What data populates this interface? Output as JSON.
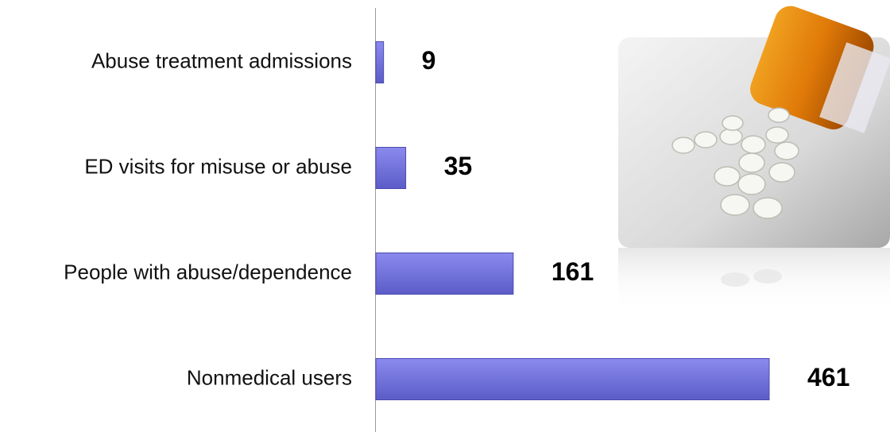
{
  "chart_data": {
    "type": "bar",
    "orientation": "horizontal",
    "categories": [
      "Abuse treatment admissions",
      "ED visits for misuse or abuse",
      "People with abuse/dependence",
      "Nonmedical users"
    ],
    "values": [
      9,
      35,
      161,
      461
    ],
    "color": "#7474e0"
  }
}
